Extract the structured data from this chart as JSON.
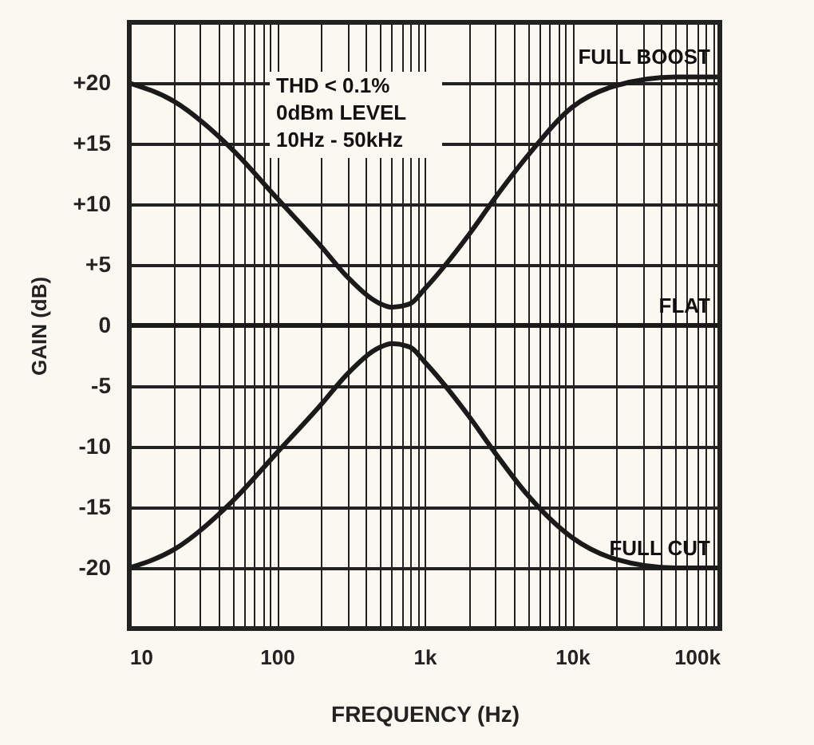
{
  "chart_data": {
    "type": "line",
    "xlabel": "FREQUENCY (Hz)",
    "ylabel": "GAIN (dB)",
    "annotations": [
      "THD < 0.1%",
      "0dBm LEVEL",
      "10Hz - 50kHz"
    ],
    "log": "x",
    "grid": true,
    "legend": false,
    "line_style": "solid",
    "marker": "none",
    "xlim": [
      10,
      100000
    ],
    "ylim": [
      -25,
      25
    ],
    "xticks": [
      {
        "value": 10,
        "label": "10"
      },
      {
        "value": 20,
        "label": null
      },
      {
        "value": 30,
        "label": null
      },
      {
        "value": 40,
        "label": null
      },
      {
        "value": 50,
        "label": null
      },
      {
        "value": 60,
        "label": null
      },
      {
        "value": 70,
        "label": null
      },
      {
        "value": 80,
        "label": null
      },
      {
        "value": 90,
        "label": null
      },
      {
        "value": 100,
        "label": "100"
      },
      {
        "value": 200,
        "label": null
      },
      {
        "value": 300,
        "label": null
      },
      {
        "value": 400,
        "label": null
      },
      {
        "value": 500,
        "label": null
      },
      {
        "value": 600,
        "label": null
      },
      {
        "value": 700,
        "label": null
      },
      {
        "value": 800,
        "label": null
      },
      {
        "value": 900,
        "label": null
      },
      {
        "value": 1000,
        "label": "1k"
      },
      {
        "value": 2000,
        "label": null
      },
      {
        "value": 3000,
        "label": null
      },
      {
        "value": 4000,
        "label": null
      },
      {
        "value": 5000,
        "label": null
      },
      {
        "value": 6000,
        "label": null
      },
      {
        "value": 7000,
        "label": null
      },
      {
        "value": 8000,
        "label": null
      },
      {
        "value": 9000,
        "label": null
      },
      {
        "value": 10000,
        "label": "10k"
      },
      {
        "value": 20000,
        "label": null
      },
      {
        "value": 30000,
        "label": null
      },
      {
        "value": 40000,
        "label": null
      },
      {
        "value": 50000,
        "label": null
      },
      {
        "value": 60000,
        "label": null
      },
      {
        "value": 70000,
        "label": null
      },
      {
        "value": 80000,
        "label": null
      },
      {
        "value": 90000,
        "label": null
      },
      {
        "value": 100000,
        "label": "100k"
      }
    ],
    "yticks": [
      {
        "value": 20,
        "label": "+20"
      },
      {
        "value": 15,
        "label": "+15"
      },
      {
        "value": 10,
        "label": "+10"
      },
      {
        "value": 5,
        "label": "+5"
      },
      0,
      -5,
      -10,
      -15,
      -20
    ],
    "series": [
      {
        "name": "FULL BOOST",
        "color": "#1a1a1a",
        "x": [
          10,
          20,
          50,
          100,
          200,
          300,
          500,
          600,
          800,
          1000,
          2000,
          3000,
          5000,
          10000,
          20000,
          50000,
          100000
        ],
        "values": [
          20,
          18.5,
          14.5,
          10.5,
          6.5,
          4,
          1.8,
          1.5,
          1.8,
          3,
          7.5,
          10.5,
          14,
          18,
          19.8,
          20.5,
          20.5
        ]
      },
      {
        "name": "FLAT",
        "color": "#1a1a1a",
        "x": [
          10,
          100000
        ],
        "values": [
          0,
          0
        ]
      },
      {
        "name": "FULL CUT",
        "color": "#1a1a1a",
        "x": [
          10,
          20,
          50,
          100,
          200,
          300,
          500,
          600,
          800,
          1000,
          2000,
          3000,
          5000,
          10000,
          20000,
          50000,
          100000
        ],
        "values": [
          -20,
          -18.5,
          -14.5,
          -10.5,
          -6.5,
          -4,
          -1.8,
          -1.5,
          -1.8,
          -3,
          -7.5,
          -10.5,
          -14,
          -17.5,
          -19.3,
          -20,
          -20
        ]
      }
    ]
  }
}
